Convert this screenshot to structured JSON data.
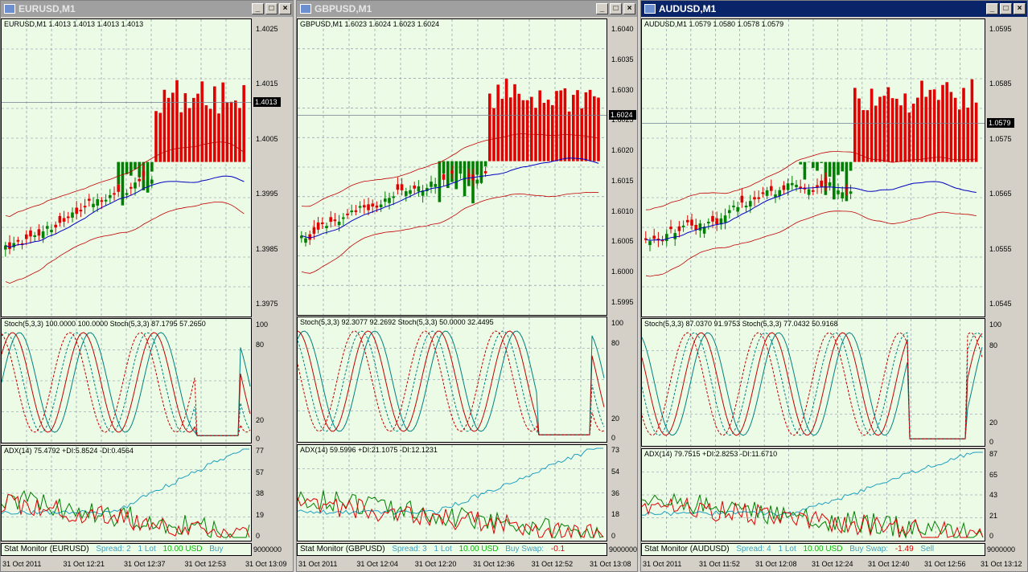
{
  "windows": [
    {
      "title": "EURUSD,M1",
      "active": false,
      "main_label": "EURUSD,M1  1.4013  1.4013  1.4013  1.4013",
      "price_ticks": [
        "1.4025",
        "1.4015",
        "1.4005",
        "1.3995",
        "1.3985",
        "1.3975"
      ],
      "current_price": "1.4013",
      "stoch_label": "Stoch(5,3,3) 100.0000 100.0000  Stoch(5,3,3) 87.1795 57.2650",
      "stoch_ticks": [
        "100",
        "80",
        "20",
        "0"
      ],
      "adx_label": "ADX(14) 75.4792 +DI:5.8524 -DI:0.4564",
      "adx_ticks": [
        "77",
        "57",
        "38",
        "19",
        "0"
      ],
      "status_name": "Stat Monitor (EURUSD)",
      "status_spread": "Spread: 2",
      "status_lot": "1 Lot",
      "status_value": "10.00 USD",
      "status_swap": "Buy",
      "status_swap_value": "",
      "status_right": "9000000",
      "time_labels": [
        "31 Oct 2011",
        "31 Oct 12:21",
        "31 Oct 12:37",
        "31 Oct 12:53",
        "31 Oct 13:09"
      ]
    },
    {
      "title": "GBPUSD,M1",
      "active": false,
      "main_label": "GBPUSD,M1  1.6023  1.6024  1.6023  1.6024",
      "price_ticks": [
        "1.6040",
        "1.6035",
        "1.6030",
        "1.6025",
        "1.6020",
        "1.6015",
        "1.6010",
        "1.6005",
        "1.6000",
        "1.5995"
      ],
      "current_price": "1.6024",
      "stoch_label": "Stoch(5,3,3) 92.3077 92.2692  Stoch(5,3,3) 50.0000 32.4495",
      "stoch_ticks": [
        "100",
        "80",
        "20",
        "0"
      ],
      "adx_label": "ADX(14) 59.5996 +DI:21.1075 -DI:12.1231",
      "adx_ticks": [
        "73",
        "54",
        "36",
        "18",
        "0"
      ],
      "status_name": "Stat Monitor (GBPUSD)",
      "status_spread": "Spread: 3",
      "status_lot": "1 Lot",
      "status_value": "10.00 USD",
      "status_swap": "Buy Swap:",
      "status_swap_value": "-0.1",
      "status_right": "9000000",
      "time_labels": [
        "31 Oct 2011",
        "31 Oct 12:04",
        "31 Oct 12:20",
        "31 Oct 12:36",
        "31 Oct 12:52",
        "31 Oct 13:08"
      ]
    },
    {
      "title": "AUDUSD,M1",
      "active": true,
      "main_label": "AUDUSD,M1  1.0579  1.0580  1.0578  1.0579",
      "price_ticks": [
        "1.0595",
        "1.0585",
        "1.0575",
        "1.0565",
        "1.0555",
        "1.0545"
      ],
      "current_price": "1.0579",
      "stoch_label": "Stoch(5,3,3) 87.0370 91.9753  Stoch(5,3,3) 77.0432 50.9168",
      "stoch_ticks": [
        "100",
        "80",
        "20",
        "0"
      ],
      "adx_label": "ADX(14) 79.7515 +DI:2.8253 -DI:11.6710",
      "adx_ticks": [
        "87",
        "65",
        "43",
        "21",
        "0"
      ],
      "status_name": "Stat Monitor (AUDUSD)",
      "status_spread": "Spread: 4",
      "status_lot": "1 Lot",
      "status_value": "10.00 USD",
      "status_swap": "Buy Swap:",
      "status_swap_value": "-1.49",
      "status_extra": "Sell",
      "status_right": "9000000",
      "time_labels": [
        "31 Oct 2011",
        "31 Oct 11:52",
        "31 Oct 12:08",
        "31 Oct 12:24",
        "31 Oct 12:40",
        "31 Oct 12:56",
        "31 Oct 13:12"
      ]
    }
  ],
  "colors": {
    "bg": "#ecfbe6",
    "grid": "#7a8a9a",
    "bull": "#008000",
    "bear": "#e00000",
    "ma": "#0000c0",
    "band": "#c00000",
    "stoch1": "#008080",
    "stoch2": "#c00000",
    "adx": "#20a0c0",
    "plusdi": "#008000",
    "minusdi": "#e00000",
    "status_green": "#00c000",
    "status_cyan": "#40a0c0",
    "status_red": "#e00000"
  }
}
